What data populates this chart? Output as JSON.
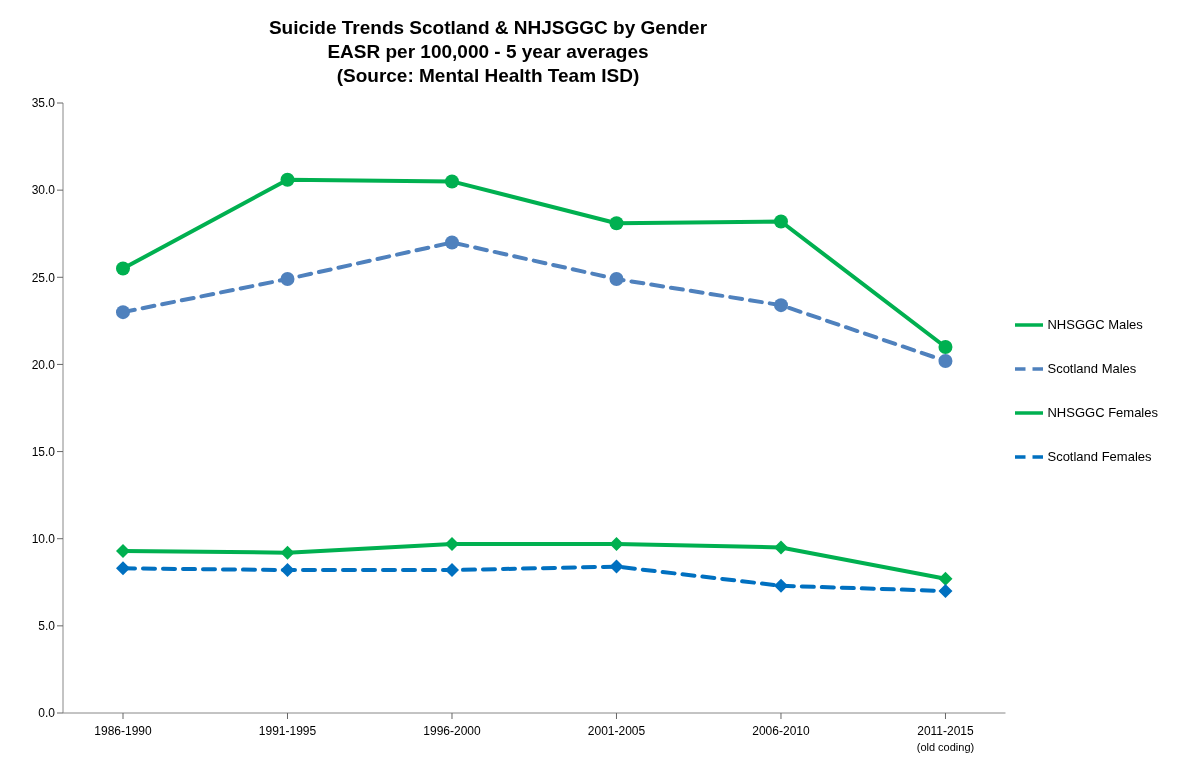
{
  "chart_data": {
    "type": "line",
    "title": "Suicide Trends Scotland & NHJSGGC by Gender\nEASR per 100,000 - 5 year averages\n(Source: Mental Health Team ISD)",
    "categories": [
      "1986-1990",
      "1991-1995",
      "1996-2000",
      "2001-2005",
      "2006-2010",
      "2011-2015\n(old coding)"
    ],
    "series": [
      {
        "name": "NHSGGC Males",
        "color": "#00b050",
        "values": [
          25.5,
          30.6,
          30.5,
          28.1,
          28.2,
          21.0
        ],
        "marker": "circle",
        "line_style": "solid"
      },
      {
        "name": "Scotland Males",
        "color": "#4f81bd",
        "values": [
          23.0,
          24.9,
          27.0,
          24.9,
          23.4,
          20.2
        ],
        "marker": "circle",
        "line_style": "dashed"
      },
      {
        "name": "NHSGGC Females",
        "color": "#00b050",
        "values": [
          9.3,
          9.2,
          9.7,
          9.7,
          9.5,
          7.7
        ],
        "marker": "diamond",
        "line_style": "solid"
      },
      {
        "name": "Scotland Females",
        "color": "#0070c0",
        "values": [
          8.3,
          8.2,
          8.2,
          8.4,
          7.3,
          7.0
        ],
        "marker": "diamond",
        "line_style": "dashed"
      }
    ],
    "ylim": [
      0,
      35
    ],
    "yticks": [
      {
        "value": 0,
        "label": "0.0"
      },
      {
        "value": 5,
        "label": "5.0"
      },
      {
        "value": 10,
        "label": "10.0"
      },
      {
        "value": 15,
        "label": "15.0"
      },
      {
        "value": 20,
        "label": "20.0"
      },
      {
        "value": 25,
        "label": "25.0"
      },
      {
        "value": 30,
        "label": "30.0"
      },
      {
        "value": 35,
        "label": "35.0"
      }
    ],
    "legend": "right"
  }
}
